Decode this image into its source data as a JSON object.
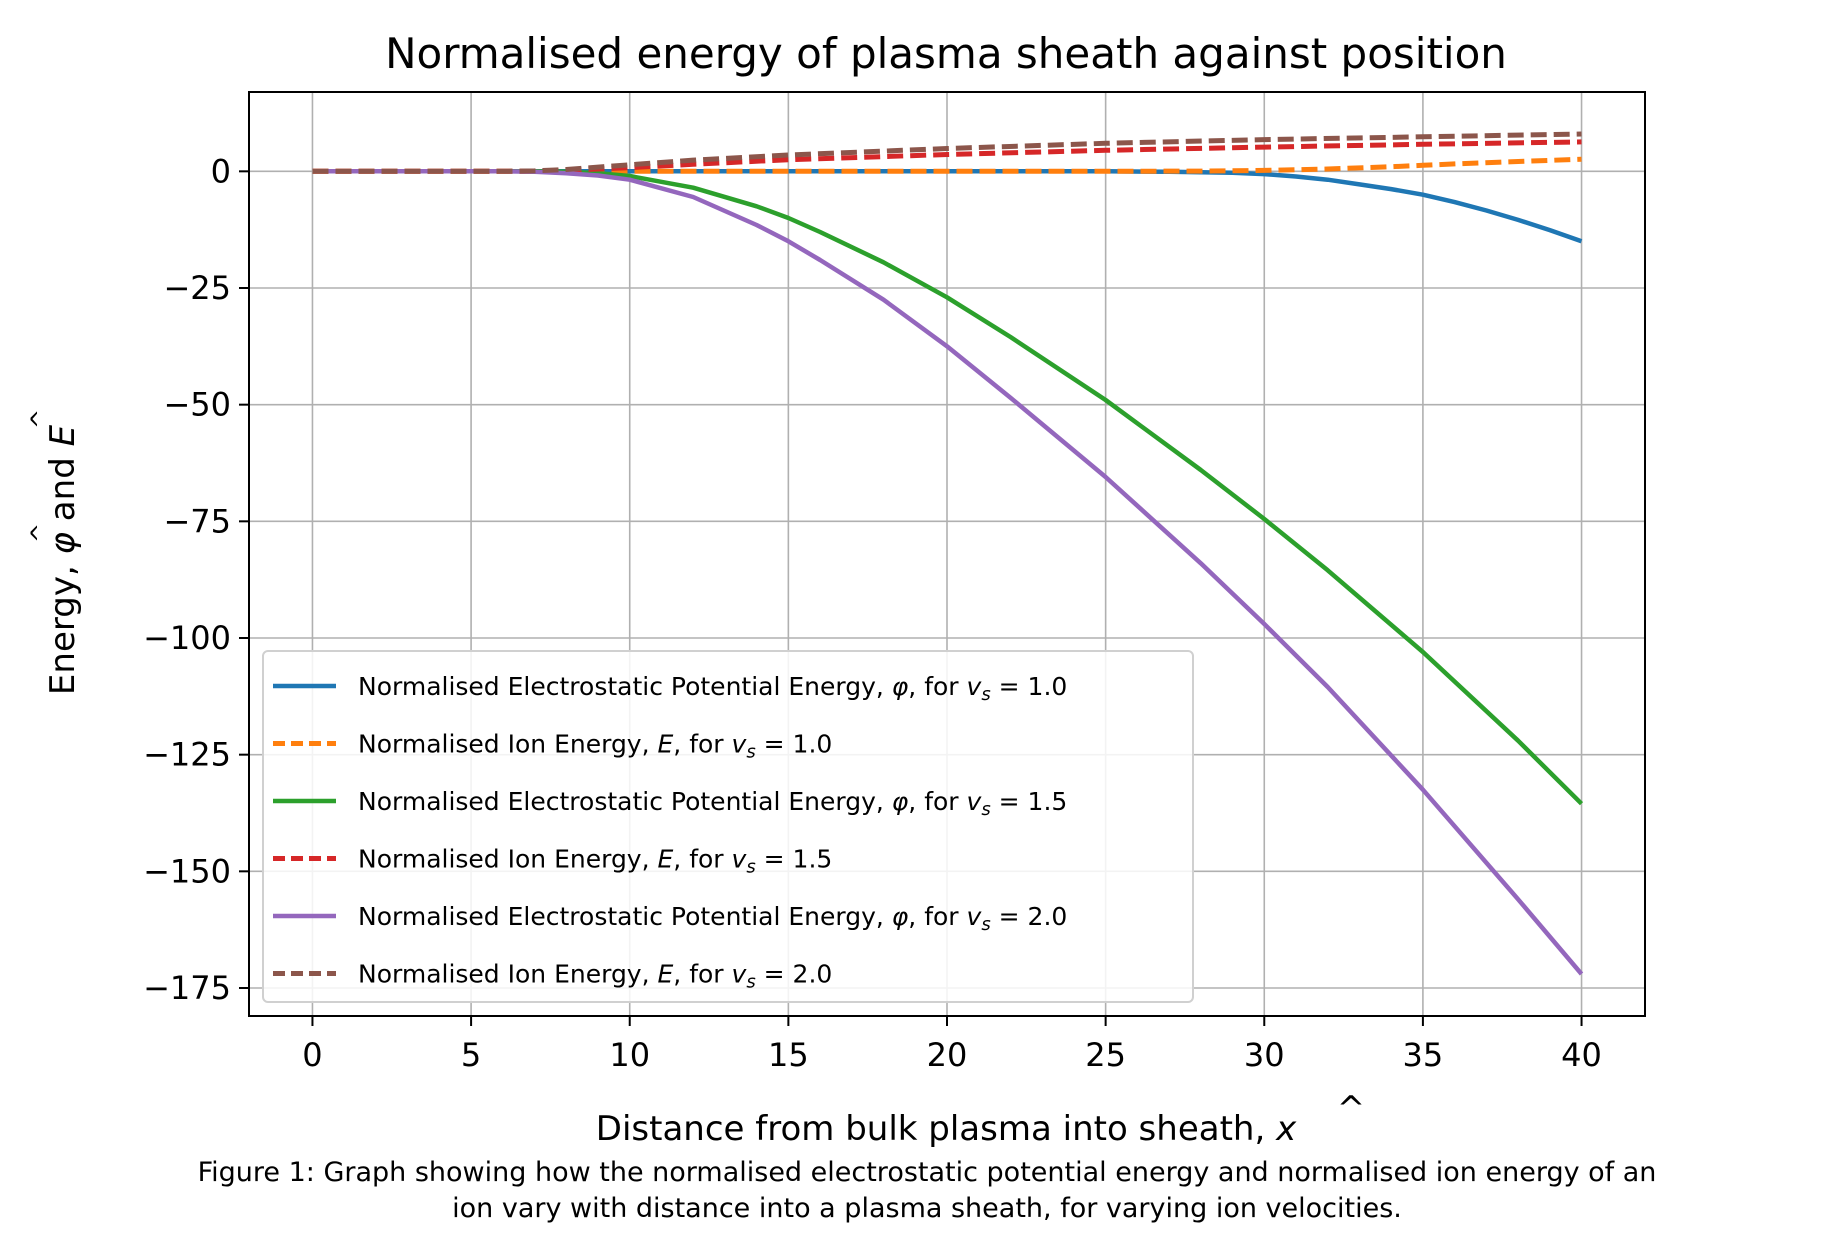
{
  "chart_data": {
    "type": "line",
    "title": "Normalised energy of plasma sheath against position",
    "xlabel": "Distance from bulk plasma into sheath, x̂",
    "ylabel": "Energy, φ̂ and Ê",
    "xlim": [
      -2,
      42
    ],
    "ylim": [
      -181,
      17
    ],
    "xticks": [
      0,
      5,
      10,
      15,
      20,
      25,
      30,
      35,
      40
    ],
    "yticks": [
      0,
      -25,
      -50,
      -75,
      -100,
      -125,
      -150,
      -175
    ],
    "xtick_labels": [
      "0",
      "5",
      "10",
      "15",
      "20",
      "25",
      "30",
      "35",
      "40"
    ],
    "ytick_labels": [
      "0",
      "−25",
      "−50",
      "−75",
      "−100",
      "−125",
      "−150",
      "−175"
    ],
    "grid": true,
    "legend_position": "lower-left",
    "series": [
      {
        "name": "Normalised Electrostatic Potential Energy, φ̂, for v̂s = 1.0",
        "color": "#1f77b4",
        "style": "solid",
        "x": [
          0,
          5,
          10,
          15,
          20,
          25,
          27,
          29,
          30,
          31,
          32,
          33,
          34,
          35,
          36,
          37,
          38,
          39,
          40
        ],
        "y": [
          0,
          0,
          0,
          0,
          0,
          0,
          -0.1,
          -0.3,
          -0.6,
          -1.1,
          -1.8,
          -2.8,
          -3.8,
          -5.0,
          -6.6,
          -8.4,
          -10.4,
          -12.6,
          -15.0
        ]
      },
      {
        "name": "Normalised Ion Energy, Ê, for v̂s = 1.0",
        "color": "#ff7f0e",
        "style": "dashed",
        "x": [
          0,
          5,
          10,
          15,
          20,
          25,
          28,
          30,
          32,
          34,
          35,
          36,
          38,
          40
        ],
        "y": [
          0,
          0,
          0,
          0,
          0,
          0,
          0.05,
          0.2,
          0.5,
          1.0,
          1.3,
          1.6,
          2.1,
          2.6
        ]
      },
      {
        "name": "Normalised Electrostatic Potential Energy, φ̂, for v̂s = 1.5",
        "color": "#2ca02c",
        "style": "solid",
        "x": [
          0,
          5,
          7,
          8,
          9,
          10,
          12,
          14,
          15,
          16,
          18,
          20,
          22,
          25,
          28,
          30,
          32,
          35,
          38,
          40
        ],
        "y": [
          0,
          0,
          0,
          -0.1,
          -0.4,
          -1.0,
          -3.5,
          -7.5,
          -10.0,
          -13.0,
          -19.5,
          -27.0,
          -35.5,
          -49.0,
          -64.0,
          -74.5,
          -85.5,
          -103.0,
          -122.0,
          -135.5
        ]
      },
      {
        "name": "Normalised Ion Energy, Ê, for v̂s = 1.5",
        "color": "#d62728",
        "style": "dashed",
        "x": [
          0,
          5,
          7,
          8,
          10,
          12,
          15,
          20,
          25,
          30,
          35,
          40
        ],
        "y": [
          0,
          0,
          0,
          0.2,
          0.8,
          1.5,
          2.5,
          3.6,
          4.5,
          5.2,
          5.8,
          6.3
        ]
      },
      {
        "name": "Normalised Electrostatic Potential Energy, φ̂, for v̂s = 2.0",
        "color": "#9467bd",
        "style": "solid",
        "x": [
          0,
          5,
          6,
          7,
          8,
          9,
          10,
          12,
          14,
          15,
          16,
          18,
          20,
          22,
          25,
          28,
          30,
          32,
          35,
          38,
          40
        ],
        "y": [
          0,
          0,
          0,
          -0.1,
          -0.4,
          -0.9,
          -1.8,
          -5.5,
          -11.5,
          -15.0,
          -19.0,
          -27.5,
          -37.5,
          -48.5,
          -65.5,
          -84.0,
          -97.0,
          -110.5,
          -132.5,
          -156.0,
          -172.0
        ]
      },
      {
        "name": "Normalised Ion Energy, Ê, for v̂s = 2.0",
        "color": "#8c564b",
        "style": "dashed",
        "x": [
          0,
          5,
          6,
          7,
          8,
          10,
          12,
          15,
          20,
          25,
          30,
          35,
          40
        ],
        "y": [
          0,
          0,
          0,
          0.1,
          0.4,
          1.4,
          2.4,
          3.5,
          4.9,
          6.0,
          6.8,
          7.4,
          8.0
        ]
      }
    ]
  },
  "legend": {
    "rows": [
      {
        "prefix": "Normalised Electrostatic Potential Energy, ",
        "sym": "φ",
        "suffix": ", for ",
        "v": "v",
        "sub": "s",
        "eq": " = 1.0"
      },
      {
        "prefix": "Normalised Ion Energy, ",
        "sym": "E",
        "suffix": ", for ",
        "v": "v",
        "sub": "s",
        "eq": " = 1.0"
      },
      {
        "prefix": "Normalised Electrostatic Potential Energy, ",
        "sym": "φ",
        "suffix": ", for ",
        "v": "v",
        "sub": "s",
        "eq": " = 1.5"
      },
      {
        "prefix": "Normalised Ion Energy, ",
        "sym": "E",
        "suffix": ", for ",
        "v": "v",
        "sub": "s",
        "eq": " = 1.5"
      },
      {
        "prefix": "Normalised Electrostatic Potential Energy, ",
        "sym": "φ",
        "suffix": ", for ",
        "v": "v",
        "sub": "s",
        "eq": " = 2.0"
      },
      {
        "prefix": "Normalised Ion Energy, ",
        "sym": "E",
        "suffix": ", for ",
        "v": "v",
        "sub": "s",
        "eq": " = 2.0"
      }
    ]
  },
  "caption": {
    "line1": "Figure 1: Graph showing how the normalised electrostatic potential energy and normalised ion energy of an",
    "line2": "ion vary with distance into a plasma sheath, for varying ion velocities."
  },
  "labels": {
    "xlabel_main": "Distance from bulk plasma into sheath, ",
    "xlabel_sym": "x",
    "ylabel_main": "Energy, ",
    "ylabel_sym1": "φ",
    "ylabel_and": " and ",
    "ylabel_sym2": "E",
    "hat": "^"
  }
}
